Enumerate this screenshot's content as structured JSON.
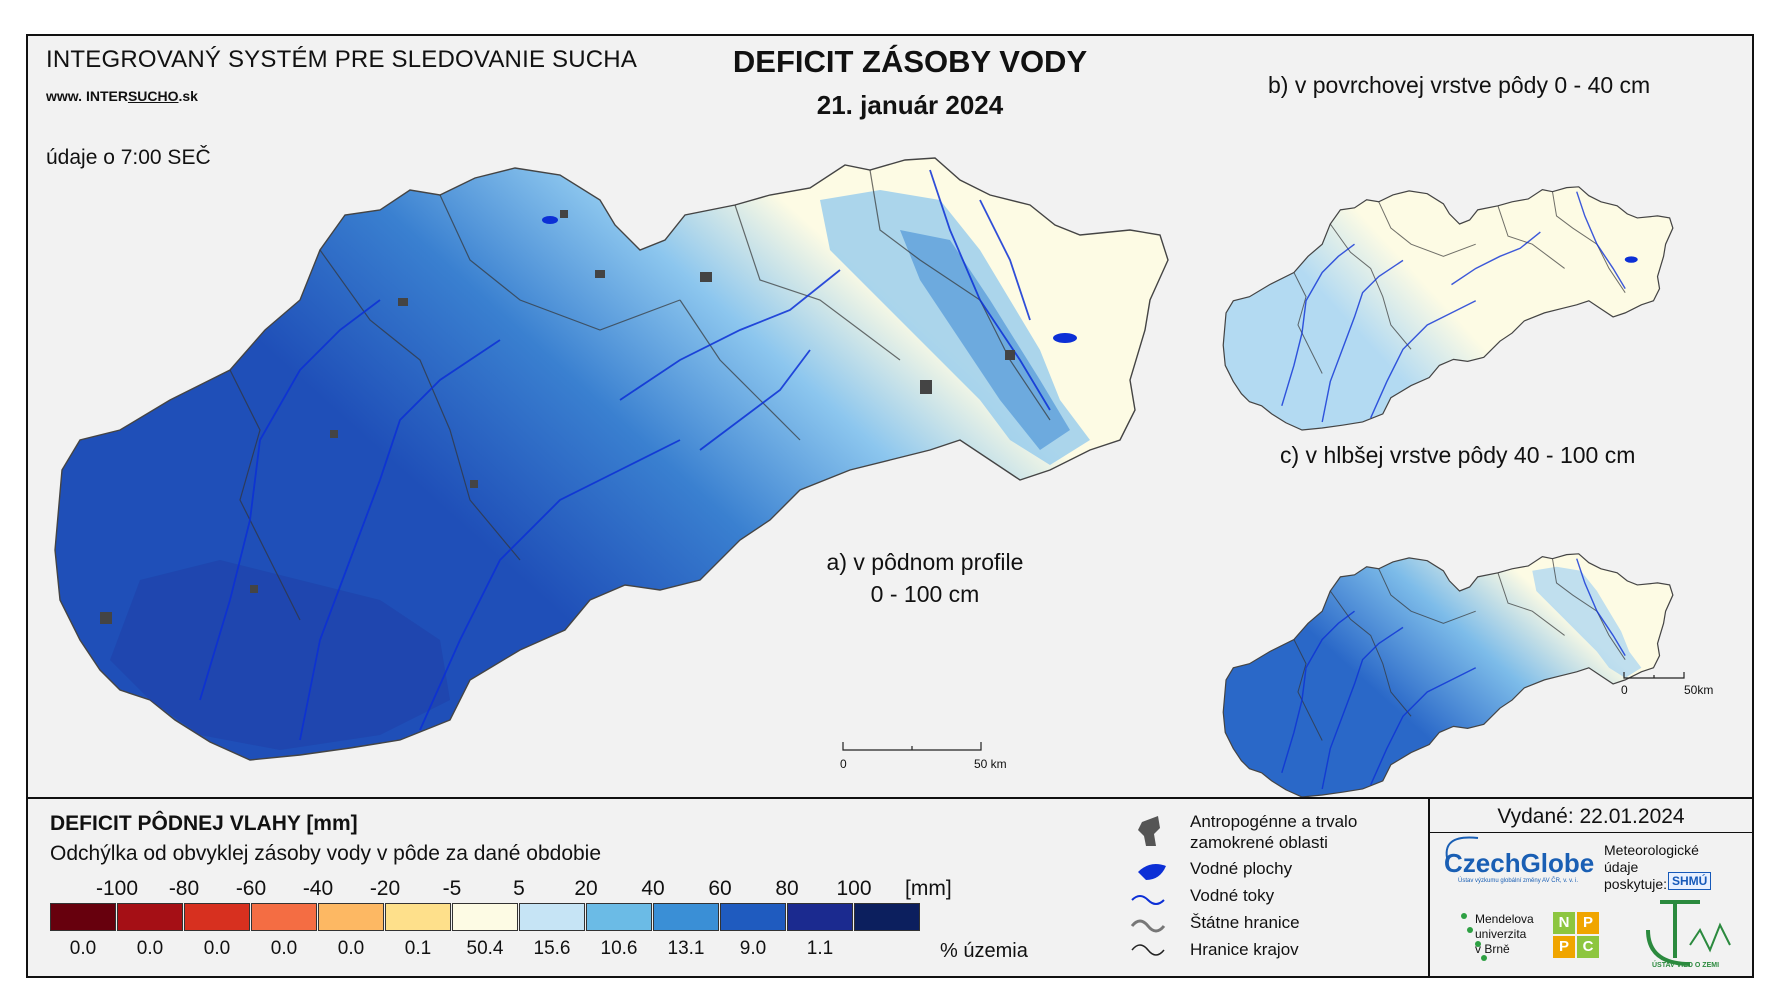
{
  "header": {
    "system_title": "INTEGROVANÝ SYSTÉM PRE SLEDOVANIE SUCHA",
    "website_prefix": "www. ",
    "website_inter": "INTER",
    "website_sucho": "SUCHO",
    "website_suffix": ".sk",
    "time_note": "údaje o 7:00 SEČ",
    "title": "DEFICIT ZÁSOBY VODY",
    "date": "21. január 2024"
  },
  "maps": {
    "a_label_line1": "a) v pôdnom profile",
    "a_label_line2": "0 - 100 cm",
    "b_label": "b) v povrchovej vrstve pôdy 0 - 40 cm",
    "c_label": "c) v hlbšej vrstve pôdy 40 - 100 cm",
    "scale_main_start": "0",
    "scale_main_end": "50 km",
    "scale_small_start": "0",
    "scale_small_end": "50km"
  },
  "legend": {
    "title": "DEFICIT PÔDNEJ VLAHY [mm]",
    "subtitle": "Odchýlka od obvyklej zásoby vody v pôde za dané obdobie",
    "unit": "[mm]",
    "pct_unit": "% územia",
    "ticks": [
      "-100",
      "-80",
      "-60",
      "-40",
      "-20",
      "-5",
      "5",
      "20",
      "40",
      "60",
      "80",
      "100"
    ],
    "classes": [
      {
        "color": "#67000d",
        "pct": "0.0"
      },
      {
        "color": "#a50f15",
        "pct": "0.0"
      },
      {
        "color": "#d7301f",
        "pct": "0.0"
      },
      {
        "color": "#f46d43",
        "pct": "0.0"
      },
      {
        "color": "#fdb863",
        "pct": "0.0"
      },
      {
        "color": "#fee08b",
        "pct": "0.1"
      },
      {
        "color": "#fdfbe4",
        "pct": "50.4"
      },
      {
        "color": "#c6e4f5",
        "pct": "15.6"
      },
      {
        "color": "#6bbbe6",
        "pct": "10.6"
      },
      {
        "color": "#3a8fd6",
        "pct": "13.1"
      },
      {
        "color": "#1f5bbf",
        "pct": "9.0"
      },
      {
        "color": "#1b2a8f",
        "pct": "1.1"
      },
      {
        "color": "#0c1f5e",
        "pct": ""
      }
    ],
    "symbols": {
      "anthropogenic_line1": "Antropogénne a trvalo",
      "anthropogenic_line2": "zamokrené oblasti",
      "water_bodies": "Vodné plochy",
      "rivers": "Vodné toky",
      "state_border": "Štátne hranice",
      "region_border": "Hranice krajov"
    }
  },
  "issued": {
    "label": "Vydané: 22.01.2024",
    "czechglobe": "CzechGlobe",
    "czechglobe_sub": "Ústav výzkumu globální změny AV ČR, v. v. i.",
    "meteo_line1": "Meteorologické",
    "meteo_line2": "údaje",
    "meteo_line3": "poskytuje:",
    "shmu": "SHMÚ",
    "mendel_line1": "Mendelova",
    "mendel_line2": "univerzita",
    "mendel_line3": "v Brně",
    "nppc": [
      "N",
      "P",
      "P",
      "C"
    ],
    "uvz": "ÚSTAV VIED O ZEMI"
  }
}
